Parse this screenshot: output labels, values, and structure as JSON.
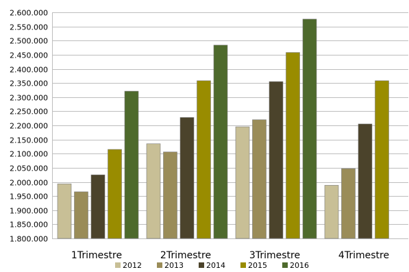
{
  "chart_data": {
    "type": "bar",
    "categories": [
      "1Trimestre",
      "2Trimestre",
      "3Trimestre",
      "4Trimestre"
    ],
    "series": [
      {
        "name": "2012",
        "color": "#c8bf96",
        "values": [
          1993000,
          2135000,
          2195000,
          1988000
        ]
      },
      {
        "name": "2013",
        "color": "#9a8c58",
        "values": [
          1965000,
          2106000,
          2220000,
          2047000
        ]
      },
      {
        "name": "2014",
        "color": "#4b432b",
        "values": [
          2025000,
          2228000,
          2355000,
          2205000
        ]
      },
      {
        "name": "2015",
        "color": "#998c00",
        "values": [
          2115000,
          2358000,
          2458000,
          2358000
        ]
      },
      {
        "name": "2016",
        "color": "#4e6a2c",
        "values": [
          2321000,
          2484000,
          2576000,
          null
        ]
      }
    ],
    "ylim": [
      1800000,
      2600000
    ],
    "yticks": [
      1800000,
      1850000,
      1900000,
      1950000,
      2000000,
      2050000,
      2100000,
      2150000,
      2200000,
      2250000,
      2300000,
      2350000,
      2400000,
      2450000,
      2500000,
      2550000,
      2600000
    ],
    "ytick_labels": [
      "1.800.000",
      "1.850.000",
      "1.900.000",
      "1.950.000",
      "2.000.000",
      "2.050.000",
      "2.100.000",
      "2.150.000",
      "2.200.000",
      "2.250.000",
      "2.300.000",
      "2.350.000",
      "2.400.000",
      "2.450.000",
      "2.500.000",
      "2.550.000",
      "2.600.000"
    ],
    "title": "",
    "xlabel": "",
    "ylabel": "",
    "grid": true,
    "legend_position": "bottom"
  }
}
